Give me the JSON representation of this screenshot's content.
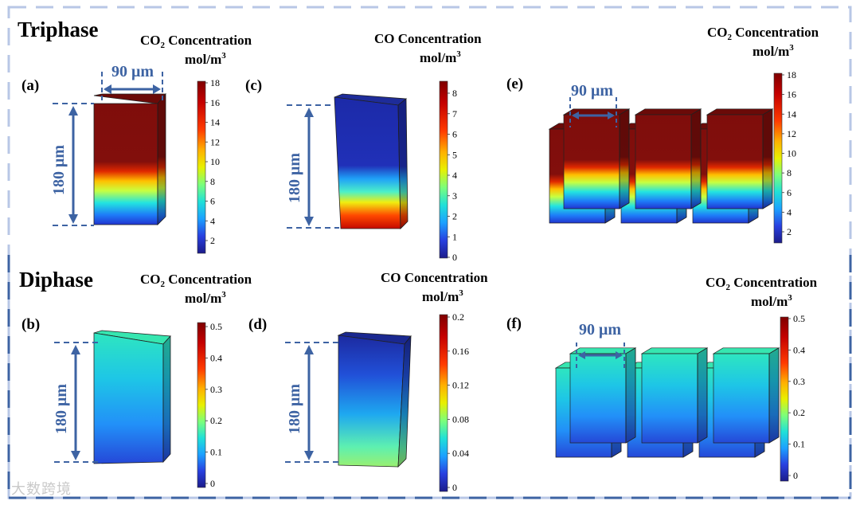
{
  "sections": {
    "triphase": "Triphase",
    "diphase": "Diphase"
  },
  "panels": [
    {
      "id": "a",
      "label": "(a)",
      "quantity": "CO",
      "subscript": "2",
      "title_rest": " Concentration",
      "units": "mol/m",
      "units_sup": "3",
      "width_dim": "90 μm",
      "height_dim": "180 μm",
      "ticks": [
        "18",
        "16",
        "14",
        "12",
        "10",
        "8",
        "6",
        "4",
        "2"
      ],
      "colormap": "jet",
      "block": "tall-red-top"
    },
    {
      "id": "c",
      "label": "(c)",
      "quantity": "CO",
      "subscript": "",
      "title_rest": " Concentration",
      "units": "mol/m",
      "units_sup": "3",
      "height_dim": "180 μm",
      "ticks": [
        "8",
        "7",
        "6",
        "5",
        "4",
        "3",
        "2",
        "1",
        "0"
      ],
      "colormap": "jet",
      "block": "tall-blue-top"
    },
    {
      "id": "e",
      "label": "(e)",
      "quantity": "CO",
      "subscript": "2",
      "title_rest": " Concentration",
      "units": "mol/m",
      "units_sup": "3",
      "width_dim": "90 μm",
      "ticks": [
        "18",
        "16",
        "14",
        "12",
        "10",
        "8",
        "6",
        "4",
        "2"
      ],
      "colormap": "jet",
      "block": "array-red-top"
    },
    {
      "id": "b",
      "label": "(b)",
      "quantity": "CO",
      "subscript": "2",
      "title_rest": " Concentration",
      "units": "mol/m",
      "units_sup": "3",
      "height_dim": "180 μm",
      "ticks": [
        "0.5",
        "0.4",
        "0.3",
        "0.2",
        "0.1",
        "0"
      ],
      "colormap": "jet",
      "block": "tall-cyan"
    },
    {
      "id": "d",
      "label": "(d)",
      "quantity": "CO",
      "subscript": "",
      "title_rest": " Concentration",
      "units": "mol/m",
      "units_sup": "3",
      "height_dim": "180 μm",
      "ticks": [
        "0.2",
        "0.16",
        "0.12",
        "0.08",
        "0.04",
        "0"
      ],
      "colormap": "jet",
      "block": "tall-blue-green"
    },
    {
      "id": "f",
      "label": "(f)",
      "quantity": "CO",
      "subscript": "2",
      "title_rest": " Concentration",
      "units": "mol/m",
      "units_sup": "3",
      "width_dim": "90 μm",
      "ticks": [
        "0.5",
        "0.4",
        "0.3",
        "0.2",
        "0.1",
        "0"
      ],
      "colormap": "jet",
      "block": "array-cyan"
    }
  ],
  "colors": {
    "frame_dash": "#b8c7e6",
    "dimension": "#3d63a3",
    "dark_red": "#7f0d0b",
    "cube_edge": "#222222"
  },
  "watermark": "大数跨境"
}
